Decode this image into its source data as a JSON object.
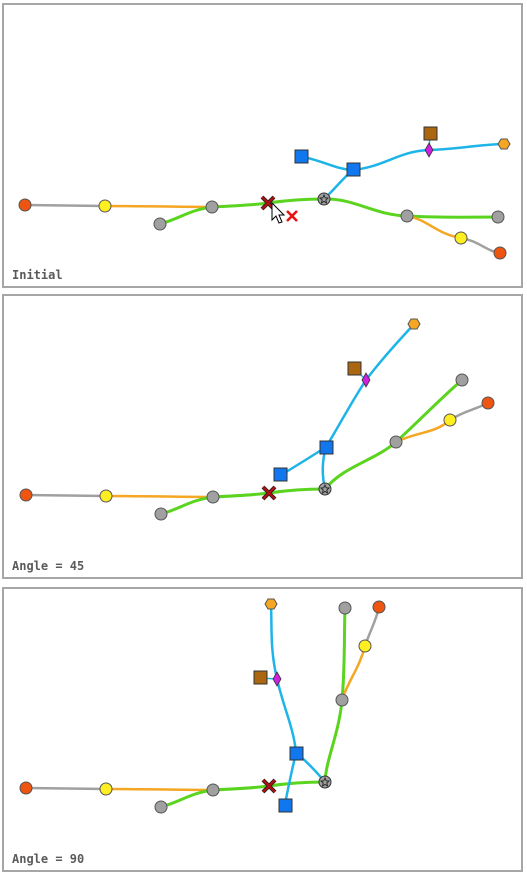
{
  "panels": [
    {
      "caption": "Initial"
    },
    {
      "caption": "Angle = 45"
    },
    {
      "caption": "Angle = 90"
    }
  ],
  "colors": {
    "gray_line": "#a0a0a0",
    "orange_line": "#f5a623",
    "green_line": "#5ad41e",
    "blue_line": "#1fb4e8",
    "node_red": "#ee5511",
    "node_yellow": "#ffee22",
    "node_gray": "#a0a0a0",
    "node_blue": "#1177ee",
    "node_brown": "#aa6611",
    "node_magenta": "#cc22dd",
    "node_orange": "#f5a623",
    "marker_x": "#cc1111",
    "marker_x_dark": "#881111"
  },
  "icons": [
    "x-marker-icon",
    "red-x-icon",
    "star-junction-icon",
    "cursor-arrow-icon"
  ]
}
